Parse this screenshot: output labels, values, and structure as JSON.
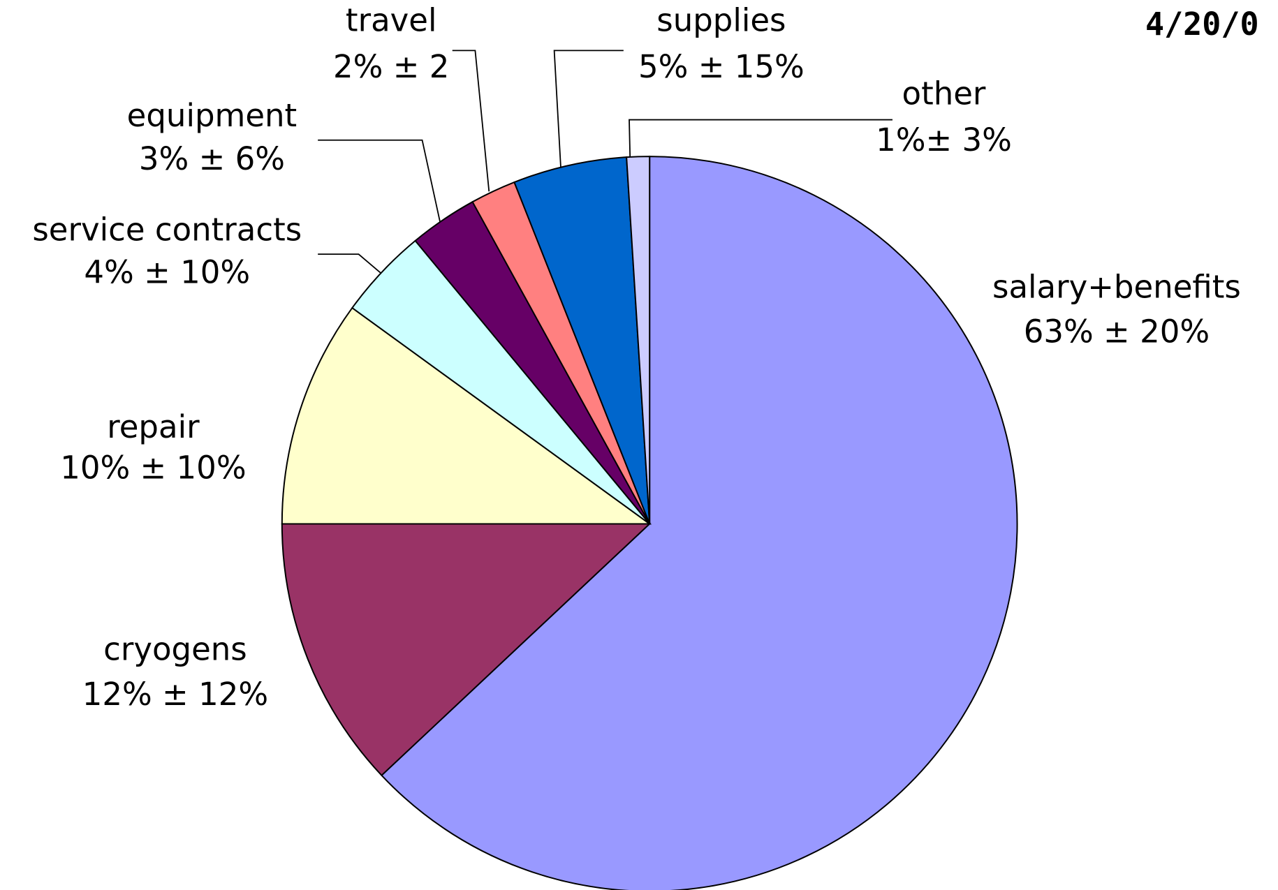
{
  "chart_data": {
    "type": "pie",
    "title": "4/20/0",
    "categories": [
      "salary+benefits",
      "cryogens",
      "repair",
      "service contracts",
      "equipment",
      "travel",
      "supplies",
      "other"
    ],
    "values": [
      63,
      12,
      10,
      4,
      3,
      2,
      5,
      1
    ],
    "value_labels": [
      "63% ± 20%",
      "12% ± 12%",
      "10% ± 10%",
      "4% ± 10%",
      "3% ± 6%",
      "2% ± 2",
      "5% ± 15%",
      "1%± 3%"
    ],
    "colors": [
      "#9999ff",
      "#993366",
      "#ffffcc",
      "#ccffff",
      "#660066",
      "#ff8080",
      "#0066cc",
      "#ccccff"
    ]
  }
}
